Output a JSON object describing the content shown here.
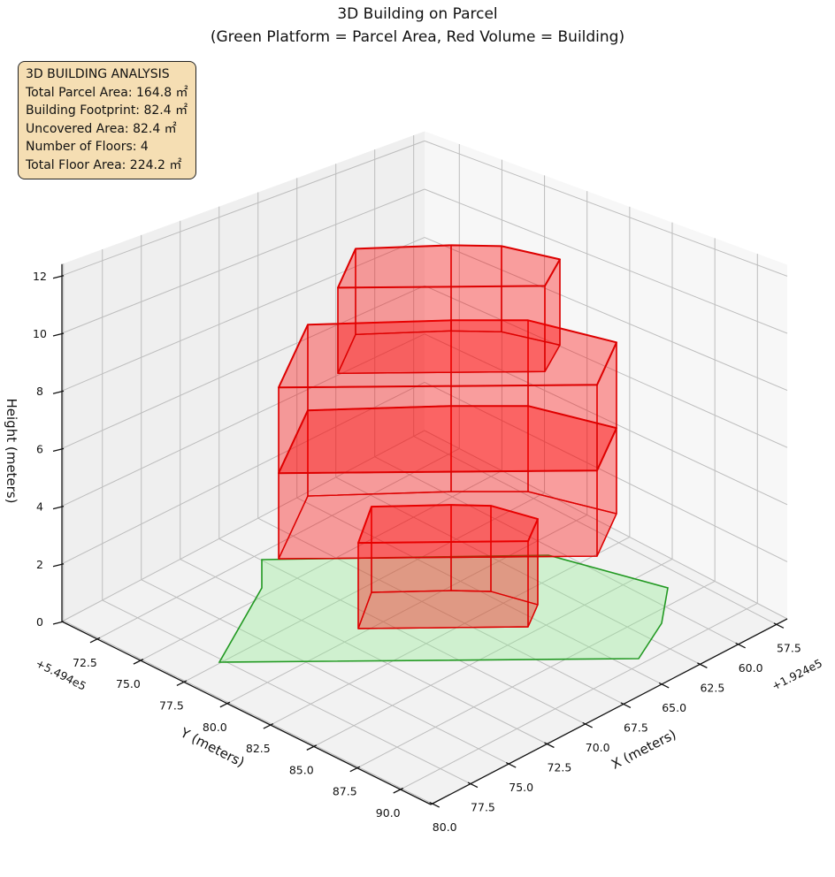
{
  "chart_data": {
    "type": "3d-polygon",
    "title_lines": [
      "3D Building on Parcel",
      "(Green Platform = Parcel Area, Red Volume = Building)"
    ],
    "xlabel": "X (meters)",
    "ylabel": "Y (meters)",
    "zlabel": "Height (meters)",
    "x_offset_label": "+1.924e5",
    "y_offset_label": "+5.494e5",
    "x_ticks": [
      "57.5",
      "60.0",
      "62.5",
      "65.0",
      "67.5",
      "70.0",
      "72.5",
      "75.0",
      "77.5",
      "80.0"
    ],
    "y_ticks": [
      "72.5",
      "75.0",
      "77.5",
      "80.0",
      "82.5",
      "85.0",
      "87.5",
      "90.0"
    ],
    "z_ticks": [
      "0",
      "2",
      "4",
      "6",
      "8",
      "10",
      "12"
    ],
    "xlim": [
      56.8,
      80.1
    ],
    "ylim": [
      70.46,
      91.75
    ],
    "zlim": [
      0,
      12.4
    ],
    "floors": [
      {
        "floor": 1,
        "z_bottom": 0,
        "z_top": 3,
        "footprint": "small"
      },
      {
        "floor": 2,
        "z_bottom": 3,
        "z_top": 6,
        "footprint": "large"
      },
      {
        "floor": 3,
        "z_bottom": 6,
        "z_top": 9,
        "footprint": "large"
      },
      {
        "floor": 4,
        "z_bottom": 9,
        "z_top": 12,
        "footprint": "medium"
      }
    ],
    "colors": {
      "parcel_fill": "#90ee90",
      "parcel_edge": "#229922",
      "building_fill": "#ff0000",
      "building_edge": "#dd0000"
    }
  },
  "info_box": {
    "lines": [
      "3D BUILDING ANALYSIS",
      "Total Parcel Area: 164.8 ㎡",
      "Building Footprint: 82.4 ㎡",
      "Uncovered Area: 82.4 ㎡",
      "Number of Floors: 4",
      "Total Floor Area: 224.2 ㎡"
    ]
  }
}
